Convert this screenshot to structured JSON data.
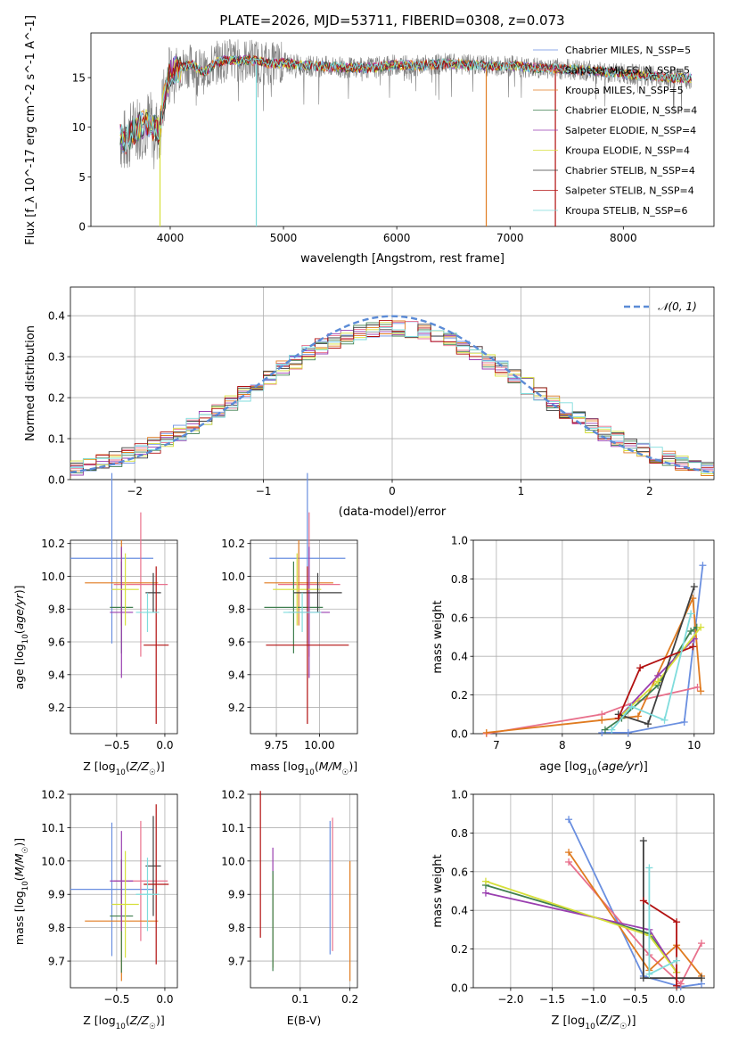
{
  "figure": {
    "title": "PLATE=2026, MJD=53711, FIBERID=0308, z=0.073"
  },
  "colors": {
    "run_colors": [
      "#6a8fe0",
      "#e8708c",
      "#e07b20",
      "#3f7f4f",
      "#9a3fb0",
      "#d6df3a",
      "#3f3f3f",
      "#b21010",
      "#7fdcdc"
    ],
    "normal_curve": "#5b8bd6",
    "data_spectrum": "#808080",
    "grid": "#b0b0b0"
  },
  "chart_data": [
    {
      "id": "spectrum",
      "type": "line",
      "xlabel": "wavelength [Angstrom, rest frame]",
      "ylabel": "Flux [f_λ 10^-17 erg cm^-2 s^-1 A^-1]",
      "xlim": [
        3300,
        8800
      ],
      "ylim": [
        0,
        19.5
      ],
      "xticks": [
        4000,
        5000,
        6000,
        7000,
        8000
      ],
      "yticks": [
        0,
        5,
        10,
        15
      ],
      "grid": false,
      "legend_position": "right",
      "legend": [
        "Chabrier MILES, N_SSP=5",
        "Salpeter MILES, N_SSP=5",
        "Kroupa MILES, N_SSP=5",
        "Chabrier ELODIE, N_SSP=4",
        "Salpeter ELODIE, N_SSP=4",
        "Kroupa ELODIE, N_SSP=4",
        "Chabrier STELIB, N_SSP=4",
        "Salpeter STELIB, N_SSP=4",
        "Kroupa STELIB, N_SSP=6"
      ],
      "continuum": {
        "x": [
          3560,
          3600,
          3700,
          3800,
          3900,
          3950,
          4000,
          4100,
          4200,
          4300,
          4400,
          4500,
          4600,
          4700,
          4800,
          4900,
          5000,
          5200,
          5400,
          5600,
          5800,
          6000,
          6200,
          6400,
          6600,
          6800,
          7000,
          7200,
          7400,
          7600,
          7800,
          8000,
          8200,
          8400,
          8600
        ],
        "y": [
          9.0,
          8.5,
          10.0,
          10.5,
          9.5,
          13.0,
          15.5,
          16.0,
          16.3,
          15.5,
          16.5,
          16.8,
          16.7,
          16.8,
          16.6,
          16.4,
          16.5,
          16.2,
          16.1,
          16.0,
          16.0,
          16.3,
          16.2,
          16.4,
          16.3,
          16.2,
          16.2,
          16.0,
          15.9,
          15.8,
          15.6,
          15.4,
          15.2,
          15.0,
          14.9
        ]
      },
      "spikes": [
        {
          "x": 3910,
          "y": 0
        },
        {
          "x": 4760,
          "y": 0
        },
        {
          "x": 6790,
          "y": 0
        },
        {
          "x": 7400,
          "y": 0
        }
      ]
    },
    {
      "id": "residual_histogram",
      "type": "line",
      "xlabel": "(data-model)/error",
      "ylabel": "Normed distribution",
      "xlim": [
        -2.5,
        2.5
      ],
      "ylim": [
        0,
        0.47
      ],
      "xticks": [
        -2,
        -1,
        0,
        1,
        2
      ],
      "yticks": [
        0.0,
        0.1,
        0.2,
        0.3,
        0.4
      ],
      "grid": true,
      "legend_position": "top-right",
      "legend": [
        "𝒩(0, 1)"
      ]
    },
    {
      "id": "age_vs_metallicity",
      "type": "scatter",
      "xlabel": "Z [log10(Z/Z☉)]",
      "ylabel": "age [log10(age/yr)]",
      "xlim": [
        -0.98,
        0.13
      ],
      "ylim": [
        9.04,
        10.22
      ],
      "xticks": [
        -0.5,
        0.0
      ],
      "yticks": [
        9.2,
        9.4,
        9.6,
        9.8,
        10.0,
        10.2
      ],
      "grid": true,
      "points": [
        {
          "run": 0,
          "x": -0.55,
          "xerr": 0.43,
          "y": 10.11,
          "yerr": 0.52
        },
        {
          "run": 1,
          "x": -0.25,
          "xerr": 0.28,
          "y": 9.95,
          "yerr": 0.44
        },
        {
          "run": 2,
          "x": -0.45,
          "xerr": 0.38,
          "y": 9.96,
          "yerr": 0.26
        },
        {
          "run": 3,
          "x": -0.45,
          "xerr": 0.12,
          "y": 9.81,
          "yerr": 0.28
        },
        {
          "run": 4,
          "x": -0.45,
          "xerr": 0.12,
          "y": 9.78,
          "yerr": 0.4
        },
        {
          "run": 5,
          "x": -0.41,
          "xerr": 0.14,
          "y": 9.92,
          "yerr": 0.22
        },
        {
          "run": 6,
          "x": -0.12,
          "xerr": 0.08,
          "y": 9.9,
          "yerr": 0.12
        },
        {
          "run": 7,
          "x": -0.09,
          "xerr": 0.13,
          "y": 9.58,
          "yerr": 0.48
        },
        {
          "run": 8,
          "x": -0.18,
          "xerr": 0.12,
          "y": 9.78,
          "yerr": 0.12
        }
      ]
    },
    {
      "id": "age_vs_mass",
      "type": "scatter",
      "xlabel": "mass [log10(M/M☉)]",
      "xlim": [
        9.6,
        10.22
      ],
      "ylim": [
        9.04,
        10.22
      ],
      "xticks": [
        9.75,
        10.0
      ],
      "yticks": [
        9.2,
        9.4,
        9.6,
        9.8,
        10.0,
        10.2
      ],
      "grid": true,
      "points": [
        {
          "run": 0,
          "x": 9.93,
          "xerr": 0.22,
          "y": 10.11,
          "yerr": 0.52
        },
        {
          "run": 1,
          "x": 9.94,
          "xerr": 0.18,
          "y": 9.95,
          "yerr": 0.44
        },
        {
          "run": 2,
          "x": 9.88,
          "xerr": 0.2,
          "y": 9.96,
          "yerr": 0.26
        },
        {
          "run": 3,
          "x": 9.85,
          "xerr": 0.17,
          "y": 9.81,
          "yerr": 0.28
        },
        {
          "run": 4,
          "x": 9.94,
          "xerr": 0.12,
          "y": 9.78,
          "yerr": 0.4
        },
        {
          "run": 5,
          "x": 9.87,
          "xerr": 0.14,
          "y": 9.92,
          "yerr": 0.22
        },
        {
          "run": 6,
          "x": 9.99,
          "xerr": 0.14,
          "y": 9.9,
          "yerr": 0.12
        },
        {
          "run": 7,
          "x": 9.93,
          "xerr": 0.24,
          "y": 9.58,
          "yerr": 0.48
        },
        {
          "run": 8,
          "x": 9.9,
          "xerr": 0.11,
          "y": 9.78,
          "yerr": 0.12
        }
      ]
    },
    {
      "id": "mass_weight_vs_age",
      "type": "line",
      "xlabel": "age [log10(age/yr)]",
      "ylabel": "mass weight",
      "xlim": [
        6.65,
        10.3
      ],
      "ylim": [
        0,
        1.0
      ],
      "xticks": [
        7,
        8,
        9,
        10
      ],
      "yticks": [
        0.0,
        0.2,
        0.4,
        0.6,
        0.8,
        1.0
      ],
      "grid": true,
      "series": [
        {
          "run": 0,
          "x": [
            8.6,
            9.0,
            9.85,
            10.13
          ],
          "y": [
            0.005,
            0.005,
            0.06,
            0.87
          ]
        },
        {
          "run": 1,
          "x": [
            6.85,
            8.6,
            9.15,
            10.05
          ],
          "y": [
            0.0,
            0.1,
            0.17,
            0.24
          ]
        },
        {
          "run": 2,
          "x": [
            6.85,
            8.6,
            9.15,
            9.98,
            10.1
          ],
          "y": [
            0.005,
            0.07,
            0.09,
            0.7,
            0.22
          ]
        },
        {
          "run": 3,
          "x": [
            8.65,
            8.9,
            9.45,
            9.95,
            10.04
          ],
          "y": [
            0.02,
            0.08,
            0.25,
            0.53,
            0.55
          ]
        },
        {
          "run": 4,
          "x": [
            8.85,
            9.45,
            10.0
          ],
          "y": [
            0.08,
            0.3,
            0.49
          ]
        },
        {
          "run": 5,
          "x": [
            8.85,
            9.45,
            10.1
          ],
          "y": [
            0.08,
            0.27,
            0.55
          ]
        },
        {
          "run": 6,
          "x": [
            8.85,
            9.3,
            10.0
          ],
          "y": [
            0.1,
            0.05,
            0.76
          ]
        },
        {
          "run": 7,
          "x": [
            8.85,
            9.18,
            9.98
          ],
          "y": [
            0.08,
            0.34,
            0.45
          ]
        },
        {
          "run": 8,
          "x": [
            8.75,
            9.05,
            9.55,
            9.95
          ],
          "y": [
            0.02,
            0.14,
            0.07,
            0.62
          ]
        }
      ]
    },
    {
      "id": "mass_vs_metallicity",
      "type": "scatter",
      "xlabel": "Z [log10(Z/Z☉)]",
      "ylabel": "mass [log10(M/M☉)]",
      "xlim": [
        -0.98,
        0.13
      ],
      "ylim": [
        9.62,
        10.2
      ],
      "xticks": [
        -0.5,
        0.0
      ],
      "yticks": [
        9.7,
        9.8,
        9.9,
        10.0,
        10.1,
        10.2
      ],
      "grid": true,
      "points": [
        {
          "run": 0,
          "x": -0.55,
          "xerr": 0.43,
          "y": 9.915,
          "yerr": 0.2
        },
        {
          "run": 1,
          "x": -0.25,
          "xerr": 0.28,
          "y": 9.94,
          "yerr": 0.18
        },
        {
          "run": 2,
          "x": -0.45,
          "xerr": 0.38,
          "y": 9.82,
          "yerr": 0.18
        },
        {
          "run": 3,
          "x": -0.45,
          "xerr": 0.12,
          "y": 9.835,
          "yerr": 0.17
        },
        {
          "run": 4,
          "x": -0.45,
          "xerr": 0.12,
          "y": 9.94,
          "yerr": 0.15
        },
        {
          "run": 5,
          "x": -0.41,
          "xerr": 0.14,
          "y": 9.87,
          "yerr": 0.16
        },
        {
          "run": 6,
          "x": -0.12,
          "xerr": 0.08,
          "y": 9.985,
          "yerr": 0.15
        },
        {
          "run": 7,
          "x": -0.09,
          "xerr": 0.13,
          "y": 9.93,
          "yerr": 0.24
        },
        {
          "run": 8,
          "x": -0.18,
          "xerr": 0.12,
          "y": 9.9,
          "yerr": 0.11
        }
      ]
    },
    {
      "id": "mass_vs_ebv",
      "type": "scatter",
      "xlabel": "E(B-V)",
      "xlim": [
        0.0,
        0.215
      ],
      "ylim": [
        9.62,
        10.2
      ],
      "xticks": [
        0.1,
        0.2
      ],
      "yticks": [
        9.7,
        9.8,
        9.9,
        10.0,
        10.1,
        10.2
      ],
      "grid": true,
      "points": [
        {
          "run": 7,
          "x": 0.02,
          "y": 9.99,
          "yerr": 0.22
        },
        {
          "run": 4,
          "x": 0.045,
          "y": 9.86,
          "yerr": 0.18
        },
        {
          "run": 5,
          "x": 0.045,
          "y": 9.82,
          "yerr": 0.14
        },
        {
          "run": 3,
          "x": 0.045,
          "y": 9.82,
          "yerr": 0.15
        },
        {
          "run": 0,
          "x": 0.16,
          "y": 9.92,
          "yerr": 0.2
        },
        {
          "run": 1,
          "x": 0.165,
          "y": 9.93,
          "yerr": 0.2
        },
        {
          "run": 2,
          "x": 0.2,
          "y": 9.82,
          "yerr": 0.18
        }
      ]
    },
    {
      "id": "mass_weight_vs_metallicity",
      "type": "line",
      "xlabel": "Z [log10(Z/Z☉)]",
      "ylabel": "mass weight",
      "xlim": [
        -2.45,
        0.45
      ],
      "ylim": [
        0,
        1.0
      ],
      "xticks": [
        -2.0,
        -1.5,
        -1.0,
        -0.5,
        0.0
      ],
      "yticks": [
        0.0,
        0.2,
        0.4,
        0.6,
        0.8,
        1.0
      ],
      "grid": true,
      "series": [
        {
          "run": 0,
          "x": [
            -1.3,
            -0.4,
            0.05,
            0.3
          ],
          "y": [
            0.87,
            0.06,
            0.005,
            0.02
          ]
        },
        {
          "run": 1,
          "x": [
            -1.3,
            -0.33,
            0.05,
            0.3
          ],
          "y": [
            0.65,
            0.17,
            0.02,
            0.23
          ]
        },
        {
          "run": 2,
          "x": [
            -1.3,
            -0.33,
            0.0,
            0.3
          ],
          "y": [
            0.7,
            0.09,
            0.22,
            0.06
          ]
        },
        {
          "run": 3,
          "x": [
            -2.3,
            -0.33,
            0.0
          ],
          "y": [
            0.53,
            0.28,
            0.08
          ]
        },
        {
          "run": 4,
          "x": [
            -2.3,
            -0.33,
            0.0
          ],
          "y": [
            0.49,
            0.3,
            0.08
          ]
        },
        {
          "run": 5,
          "x": [
            -2.3,
            -0.33,
            0.0
          ],
          "y": [
            0.55,
            0.27,
            0.08
          ]
        },
        {
          "run": 6,
          "x": [
            -0.4,
            -0.4,
            0.0,
            0.3
          ],
          "y": [
            0.76,
            0.05,
            0.05,
            0.05
          ]
        },
        {
          "run": 7,
          "x": [
            -0.4,
            0.0,
            0.0
          ],
          "y": [
            0.45,
            0.34,
            0.01
          ]
        },
        {
          "run": 8,
          "x": [
            -0.33,
            -0.33,
            0.0
          ],
          "y": [
            0.62,
            0.07,
            0.14
          ]
        }
      ]
    }
  ]
}
